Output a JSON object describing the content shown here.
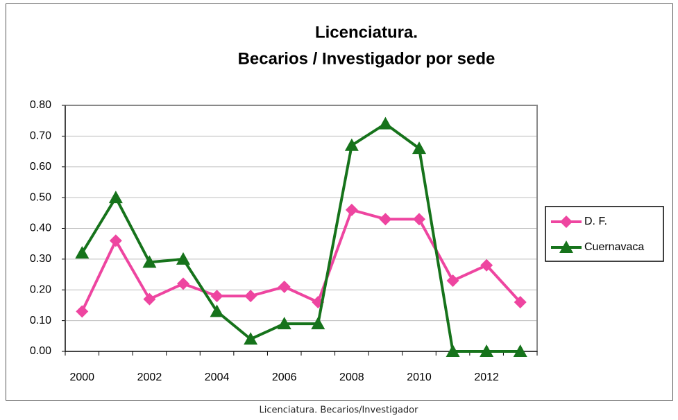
{
  "chart_data": {
    "type": "line",
    "title": [
      "Licenciatura.",
      "Becarios / Investigador por sede"
    ],
    "caption": "Licenciatura. Becarios/Investigador",
    "categories": [
      "2000",
      null,
      "2002",
      null,
      "2004",
      null,
      "2006",
      null,
      "2008",
      null,
      "2010",
      null,
      "2012",
      null
    ],
    "series": [
      {
        "name": "D. F.",
        "color": "#ee45a0",
        "marker": "diamond",
        "values": [
          0.13,
          0.36,
          0.17,
          0.22,
          0.18,
          0.18,
          0.21,
          0.16,
          0.46,
          0.43,
          0.43,
          0.23,
          0.28,
          0.16
        ]
      },
      {
        "name": "Cuernavaca",
        "color": "#16731b",
        "marker": "triangle",
        "values": [
          0.32,
          0.5,
          0.29,
          0.3,
          0.13,
          0.04,
          0.09,
          0.09,
          0.67,
          0.74,
          0.66,
          0,
          0,
          0
        ]
      }
    ],
    "ylim": [
      0,
      0.8
    ],
    "yticks": [
      {
        "value": 0,
        "label": "0.00"
      },
      {
        "value": 0.1,
        "label": "0.10"
      },
      {
        "value": 0.2,
        "label": "0.20"
      },
      {
        "value": 0.3,
        "label": "0.30"
      },
      {
        "value": 0.4,
        "label": "0.40"
      },
      {
        "value": 0.5,
        "label": "0.50"
      },
      {
        "value": 0.6,
        "label": "0.60"
      },
      {
        "value": 0.7,
        "label": "0.70"
      },
      {
        "value": 0.8,
        "label": "0.80"
      }
    ],
    "grid": true,
    "legend": "right"
  }
}
